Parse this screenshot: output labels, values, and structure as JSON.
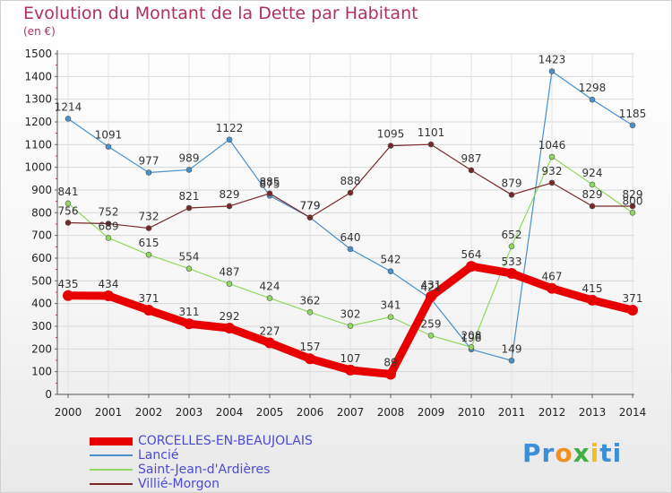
{
  "title": "Evolution du Montant de la Dette par Habitant",
  "unit": "(en €)",
  "logo": {
    "parts": [
      "Pr",
      "o",
      "x",
      "i",
      "ti"
    ],
    "colors": [
      "#3a8fd8",
      "#f09020",
      "#40b040",
      "#f0c020",
      "#3a8fd8"
    ]
  },
  "chart_data": {
    "type": "line",
    "x": [
      2000,
      2001,
      2002,
      2003,
      2004,
      2005,
      2006,
      2007,
      2008,
      2009,
      2010,
      2011,
      2012,
      2013,
      2014
    ],
    "ylim": [
      0,
      1500
    ],
    "yticks": [
      0,
      100,
      200,
      300,
      400,
      500,
      600,
      700,
      800,
      900,
      1000,
      1100,
      1200,
      1300,
      1400,
      1500
    ],
    "grid": true,
    "legend": "bottom-left",
    "series": [
      {
        "name": "CORCELLES-EN-BEAUJOLAIS",
        "color": "#e80000",
        "values": [
          435,
          434,
          371,
          311,
          292,
          227,
          157,
          107,
          89,
          431,
          564,
          533,
          467,
          415,
          371
        ]
      },
      {
        "name": "Lancié",
        "color": "#4a90cc",
        "values": [
          1214,
          1091,
          977,
          989,
          1122,
          875,
          779,
          640,
          542,
          421,
          198,
          149,
          1423,
          1298,
          1185
        ]
      },
      {
        "name": "Saint-Jean-d'Ardières",
        "color": "#90d860",
        "values": [
          841,
          689,
          615,
          554,
          487,
          424,
          362,
          302,
          341,
          259,
          208,
          652,
          1046,
          924,
          800
        ]
      },
      {
        "name": "Villié-Morgon",
        "color": "#782828",
        "values": [
          756,
          752,
          732,
          821,
          829,
          885,
          779,
          888,
          1095,
          1101,
          987,
          879,
          932,
          829,
          829
        ]
      }
    ]
  }
}
